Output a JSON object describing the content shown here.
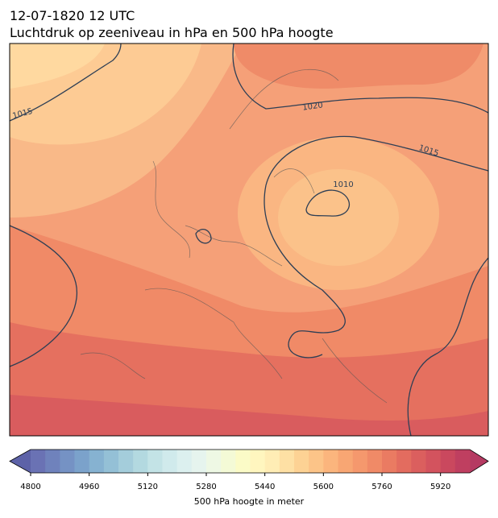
{
  "title": "12-07-1820 12 UTC",
  "subtitle": "Luchtdruk op zeeniveau in hPa en 500 hPa hoogte",
  "isobar_labels": [
    1015,
    1020,
    1015,
    1010
  ],
  "colorbar": {
    "label": "500 hPa hoogte in meter",
    "lim": [
      4800,
      6000
    ],
    "ticks": [
      4800,
      4960,
      5120,
      5280,
      5440,
      5600,
      5760,
      5920
    ],
    "under_color": "#5d62a8",
    "over_color": "#b53a62",
    "colors": [
      "#6a72b4",
      "#6f82bc",
      "#7592c4",
      "#7ba2cb",
      "#86b2d1",
      "#94c0d6",
      "#a4cddb",
      "#b3d9e0",
      "#c3e3e6",
      "#d0eaec",
      "#dcf0ef",
      "#e6f4ee",
      "#eef8e4",
      "#f4fad6",
      "#fbfbc7",
      "#fff6bf",
      "#ffedb5",
      "#fee0a4",
      "#fdd294",
      "#fcc488",
      "#fbb57d",
      "#f8a673",
      "#f5986d",
      "#f08a67",
      "#ea7b62",
      "#e36c5f",
      "#db5f5e",
      "#d3535e",
      "#ca485e",
      "#bf3f60"
    ]
  }
}
